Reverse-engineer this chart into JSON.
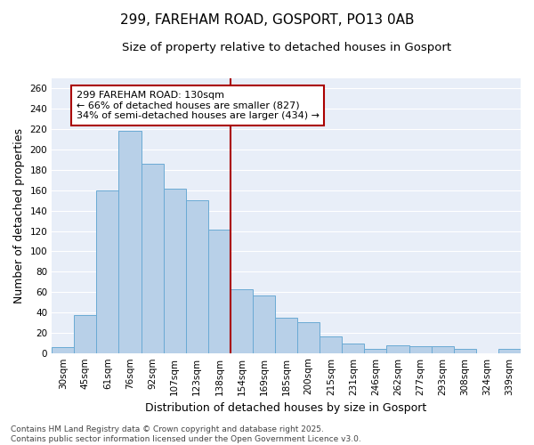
{
  "title_line1": "299, FAREHAM ROAD, GOSPORT, PO13 0AB",
  "title_line2": "Size of property relative to detached houses in Gosport",
  "xlabel": "Distribution of detached houses by size in Gosport",
  "ylabel": "Number of detached properties",
  "categories": [
    "30sqm",
    "45sqm",
    "61sqm",
    "76sqm",
    "92sqm",
    "107sqm",
    "123sqm",
    "138sqm",
    "154sqm",
    "169sqm",
    "185sqm",
    "200sqm",
    "215sqm",
    "231sqm",
    "246sqm",
    "262sqm",
    "277sqm",
    "293sqm",
    "308sqm",
    "324sqm",
    "339sqm"
  ],
  "values": [
    6,
    37,
    160,
    218,
    186,
    162,
    150,
    121,
    63,
    57,
    35,
    30,
    16,
    9,
    4,
    8,
    7,
    7,
    4,
    0,
    4
  ],
  "bar_color": "#b8d0e8",
  "bar_edge_color": "#6aaad4",
  "bar_edge_width": 0.7,
  "vline_x": 7.5,
  "vline_color": "#aa0000",
  "ylim": [
    0,
    270
  ],
  "yticks": [
    0,
    20,
    40,
    60,
    80,
    100,
    120,
    140,
    160,
    180,
    200,
    220,
    240,
    260
  ],
  "annotation_title": "299 FAREHAM ROAD: 130sqm",
  "annotation_line1": "← 66% of detached houses are smaller (827)",
  "annotation_line2": "34% of semi-detached houses are larger (434) →",
  "annotation_box_facecolor": "#ffffff",
  "annotation_box_edgecolor": "#aa0000",
  "fig_bg_color": "#ffffff",
  "plot_bg_color": "#e8eef8",
  "grid_color": "#ffffff",
  "footer_line1": "Contains HM Land Registry data © Crown copyright and database right 2025.",
  "footer_line2": "Contains public sector information licensed under the Open Government Licence v3.0.",
  "title_fontsize": 11,
  "subtitle_fontsize": 9.5,
  "axis_label_fontsize": 9,
  "tick_fontsize": 7.5,
  "annotation_fontsize": 8,
  "footer_fontsize": 6.5
}
